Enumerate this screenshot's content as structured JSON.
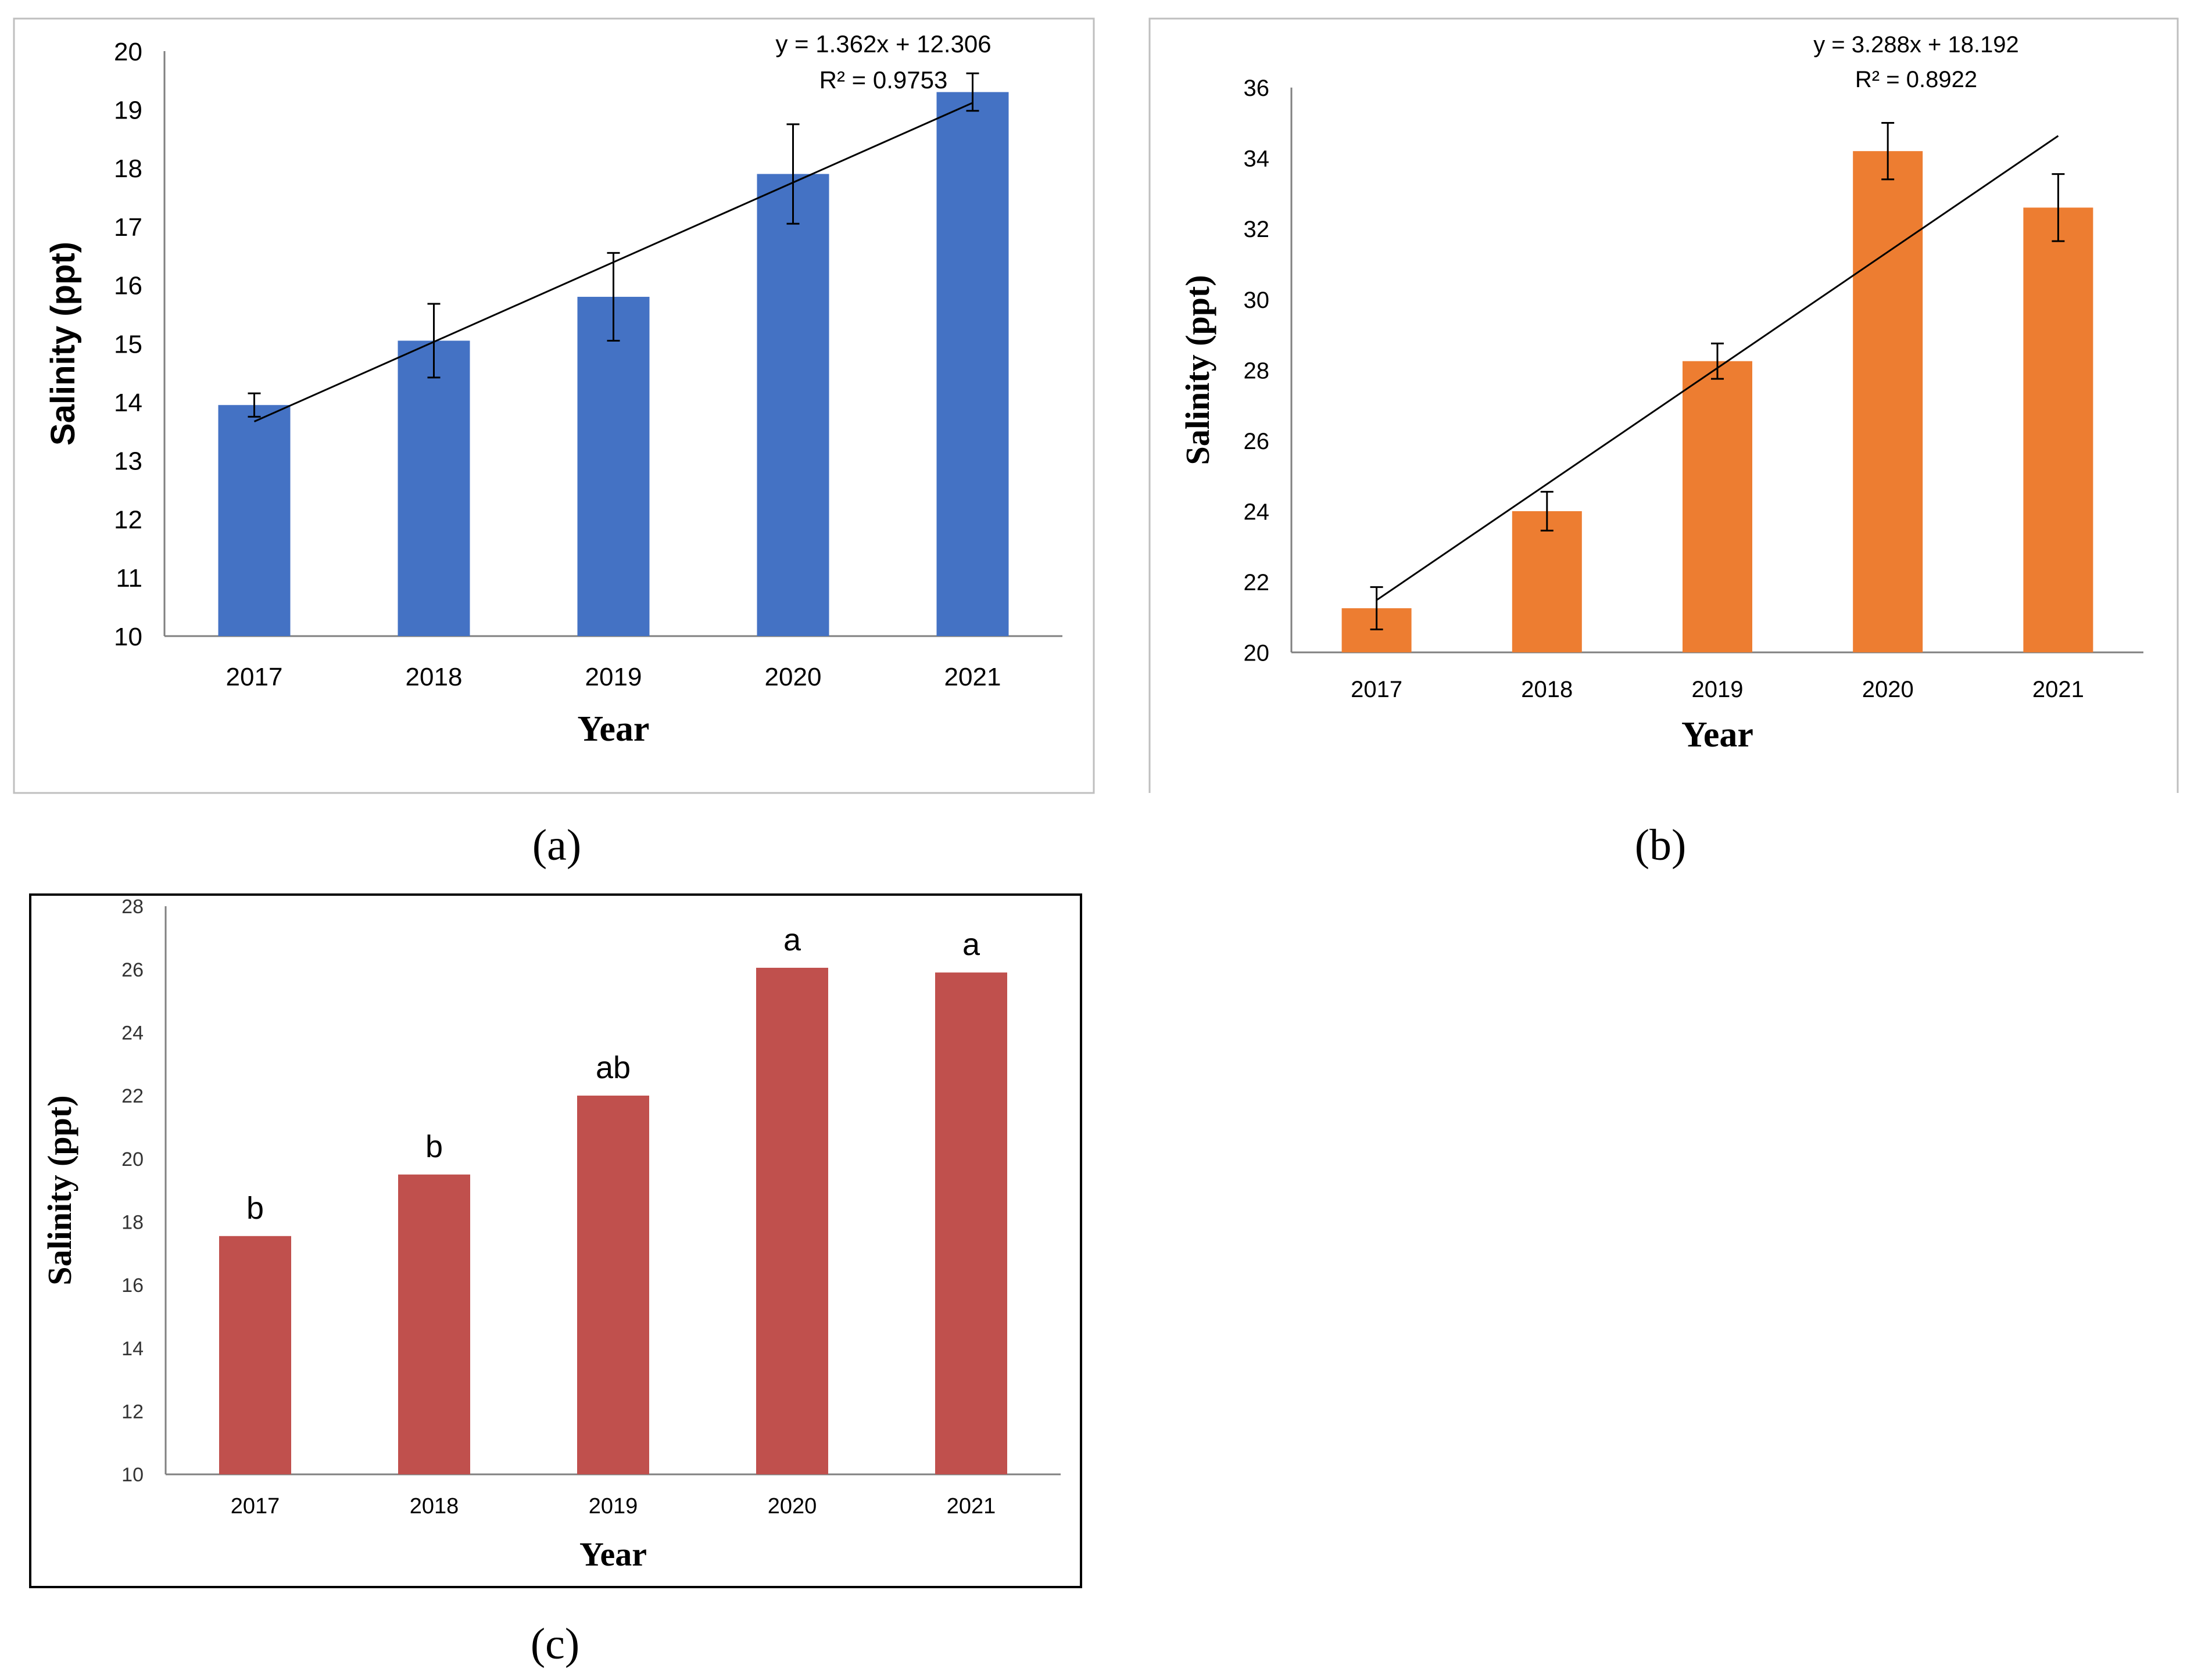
{
  "charts": [
    {
      "panel_label": "(a)",
      "chart_data": {
        "type": "bar",
        "categories": [
          "2017",
          "2018",
          "2019",
          "2020",
          "2021"
        ],
        "values": [
          13.95,
          15.05,
          15.8,
          17.9,
          19.3
        ],
        "error": [
          0.2,
          0.63,
          0.75,
          0.85,
          0.32
        ],
        "ylim": [
          10,
          20
        ],
        "yticks": [
          "10",
          "11",
          "12",
          "13",
          "14",
          "15",
          "16",
          "17",
          "18",
          "19",
          "20"
        ],
        "xlabel": "Year",
        "ylabel": "Salinity (ppt)",
        "bar_color": "#4472C4",
        "trendline": {
          "slope": 1.362,
          "intercept": 12.306
        },
        "equation": "y = 1.362x + 12.306",
        "r2": "R² = 0.9753",
        "grid": false
      }
    },
    {
      "panel_label": "(b)",
      "chart_data": {
        "type": "bar",
        "categories": [
          "2017",
          "2018",
          "2019",
          "2020",
          "2021"
        ],
        "values": [
          21.25,
          24.0,
          28.25,
          34.2,
          32.6
        ],
        "error": [
          0.6,
          0.55,
          0.5,
          0.8,
          0.95
        ],
        "ylim": [
          20,
          37
        ],
        "yticks": [
          "20",
          "22",
          "24",
          "26",
          "28",
          "30",
          "32",
          "34",
          "36"
        ],
        "xlabel": "Year",
        "ylabel": "Salinity (ppt)",
        "bar_color": "#ED7D31",
        "trendline": {
          "slope": 3.288,
          "intercept": 18.192
        },
        "equation": "y = 3.288x + 18.192",
        "r2": "R² = 0.8922",
        "grid": false
      }
    },
    {
      "panel_label": "(c)",
      "chart_data": {
        "type": "bar",
        "categories": [
          "2017",
          "2018",
          "2019",
          "2020",
          "2021"
        ],
        "values": [
          17.55,
          19.5,
          22.0,
          26.05,
          25.9
        ],
        "group_labels": [
          "b",
          "b",
          "ab",
          "a",
          "a"
        ],
        "ylim": [
          10,
          28
        ],
        "yticks": [
          "10",
          "12",
          "14",
          "16",
          "18",
          "20",
          "22",
          "24",
          "26",
          "28"
        ],
        "xlabel": "Year",
        "ylabel": "Salinity (ppt)",
        "bar_color": "#C0504D",
        "grid": false
      }
    }
  ]
}
